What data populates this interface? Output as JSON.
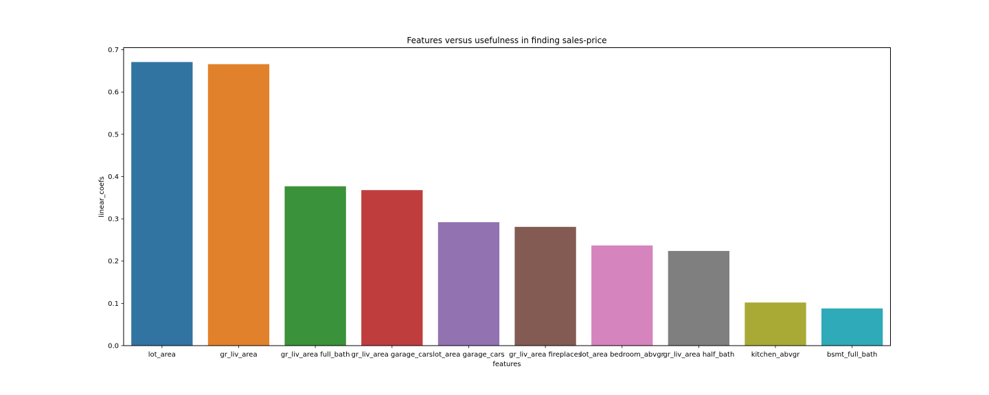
{
  "chart_data": {
    "type": "bar",
    "title": "Features versus usefulness in finding sales-price",
    "xlabel": "features",
    "ylabel": "linear_coefs",
    "categories": [
      "lot_area",
      "gr_liv_area",
      "gr_liv_area full_bath",
      "gr_liv_area garage_cars",
      "lot_area garage_cars",
      "gr_liv_area fireplaces",
      "lot_area bedroom_abvgr",
      "gr_liv_area half_bath",
      "kitchen_abvgr",
      "bsmt_full_bath"
    ],
    "values": [
      0.671,
      0.666,
      0.377,
      0.368,
      0.292,
      0.281,
      0.237,
      0.224,
      0.102,
      0.088
    ],
    "colors": [
      "#3274a1",
      "#e1812c",
      "#3a923a",
      "#c03d3e",
      "#9372b2",
      "#845b53",
      "#d684bd",
      "#7f7f7f",
      "#a9aa35",
      "#2eaab8"
    ],
    "ylim": [
      0,
      0.705
    ],
    "yticks": [
      "0.0",
      "0.1",
      "0.2",
      "0.3",
      "0.4",
      "0.5",
      "0.6",
      "0.7"
    ],
    "grid": false,
    "legend": "none"
  }
}
